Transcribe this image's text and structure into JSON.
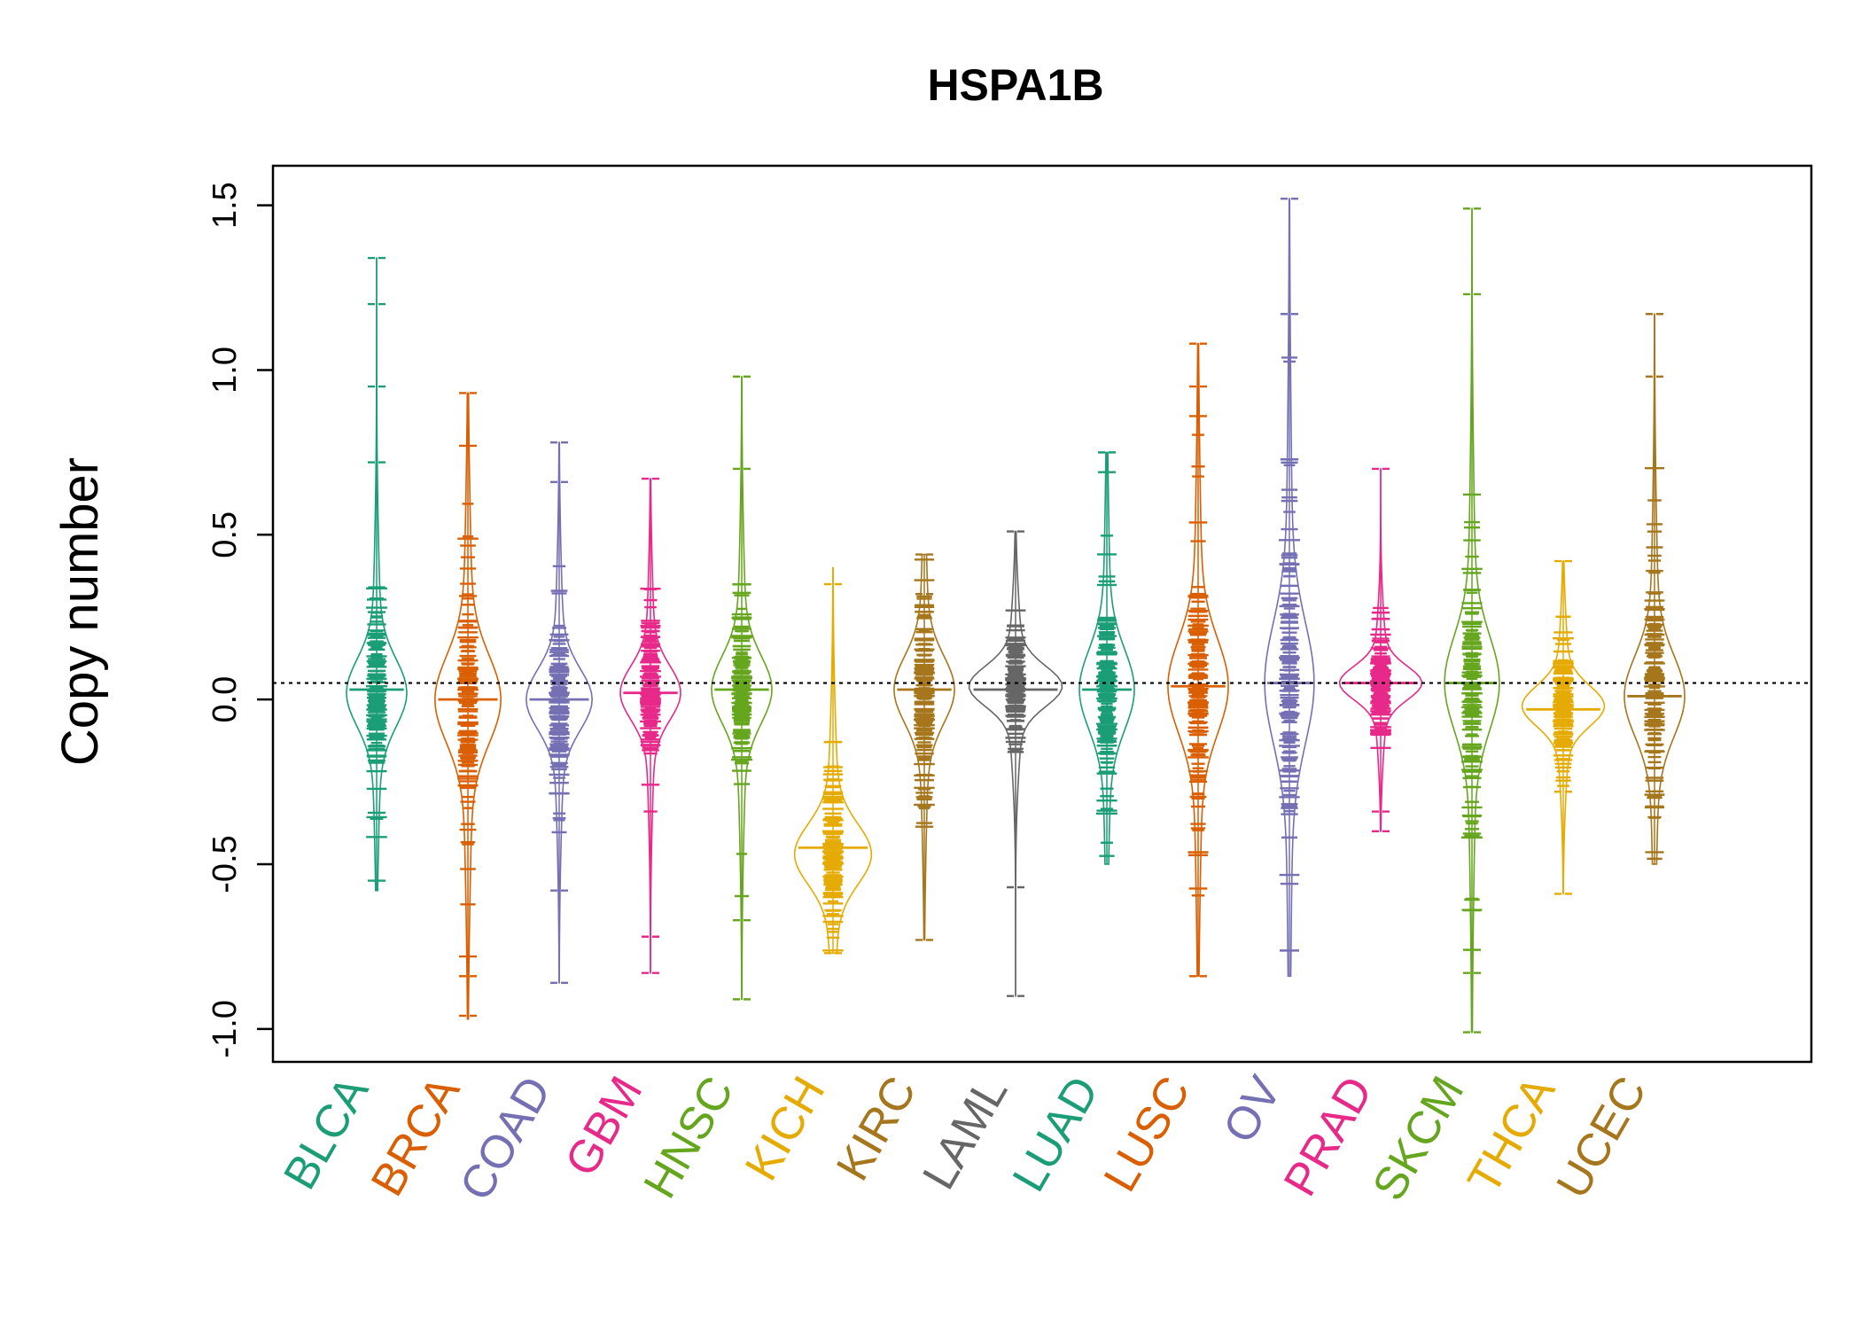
{
  "chart_data": {
    "type": "beanplot",
    "title": "HSPA1B",
    "xlabel": "",
    "ylabel": "Copy number",
    "ylim": [
      -1.1,
      1.62
    ],
    "yticks": [
      -1.0,
      -0.5,
      0.0,
      0.5,
      1.0,
      1.5
    ],
    "ytick_labels": [
      "-1.0",
      "-0.5",
      "0.0",
      "0.5",
      "1.0",
      "1.5"
    ],
    "reference_line": 0.05,
    "grid": false,
    "legend": "none",
    "categories": [
      "BLCA",
      "BRCA",
      "COAD",
      "GBM",
      "HNSC",
      "KICH",
      "KIRC",
      "LAML",
      "LUAD",
      "LUSC",
      "OV",
      "PRAD",
      "SKCM",
      "THCA",
      "UCEC"
    ],
    "colors": [
      "#1B9E77",
      "#D95F02",
      "#7570B3",
      "#E7298A",
      "#66A61E",
      "#E6AB02",
      "#A6761D",
      "#666666",
      "#1B9E77",
      "#D95F02",
      "#7570B3",
      "#E7298A",
      "#66A61E",
      "#E6AB02",
      "#A6761D"
    ],
    "series": [
      {
        "min": -0.58,
        "max": 1.34,
        "median": 0.03,
        "center": 0.02,
        "spread": 0.1,
        "width": 0.55,
        "outliers": [
          1.34,
          1.2,
          0.95,
          0.72,
          -0.55
        ]
      },
      {
        "min": -0.97,
        "max": 0.93,
        "median": 0.0,
        "center": 0.0,
        "spread": 0.13,
        "width": 0.6,
        "outliers": [
          0.93,
          0.77,
          -0.78,
          -0.84,
          -0.96
        ]
      },
      {
        "min": -0.86,
        "max": 0.78,
        "median": 0.0,
        "center": 0.0,
        "spread": 0.09,
        "width": 0.6,
        "outliers": [
          0.78,
          0.66,
          -0.58,
          -0.86
        ]
      },
      {
        "min": -0.83,
        "max": 0.67,
        "median": 0.02,
        "center": 0.02,
        "spread": 0.08,
        "width": 0.55,
        "outliers": [
          0.67,
          -0.72,
          -0.83
        ]
      },
      {
        "min": -0.91,
        "max": 0.98,
        "median": 0.03,
        "center": 0.03,
        "spread": 0.1,
        "width": 0.55,
        "outliers": [
          0.98,
          0.7,
          -0.67,
          -0.91
        ]
      },
      {
        "min": -0.77,
        "max": 0.4,
        "median": -0.45,
        "center": -0.47,
        "spread": 0.09,
        "width": 0.7,
        "outliers": [
          0.35,
          -0.77
        ]
      },
      {
        "min": -0.73,
        "max": 0.44,
        "median": 0.03,
        "center": 0.03,
        "spread": 0.1,
        "width": 0.55,
        "outliers": [
          0.44,
          0.32,
          -0.73
        ]
      },
      {
        "min": -0.9,
        "max": 0.51,
        "median": 0.03,
        "center": 0.04,
        "spread": 0.06,
        "width": 0.85,
        "outliers": [
          0.51,
          -0.57,
          -0.9
        ]
      },
      {
        "min": -0.5,
        "max": 0.75,
        "median": 0.03,
        "center": 0.03,
        "spread": 0.12,
        "width": 0.5,
        "outliers": [
          0.75,
          0.69
        ]
      },
      {
        "min": -0.84,
        "max": 1.08,
        "median": 0.04,
        "center": 0.04,
        "spread": 0.14,
        "width": 0.55,
        "outliers": [
          1.08,
          0.95,
          0.86,
          -0.84
        ]
      },
      {
        "min": -0.84,
        "max": 1.52,
        "median": 0.05,
        "center": 0.05,
        "spread": 0.18,
        "width": 0.45,
        "outliers": [
          1.52,
          1.17
        ]
      },
      {
        "min": -0.4,
        "max": 0.7,
        "median": 0.05,
        "center": 0.05,
        "spread": 0.05,
        "width": 0.75,
        "outliers": [
          0.7,
          -0.34,
          -0.4
        ]
      },
      {
        "min": -1.01,
        "max": 1.49,
        "median": 0.05,
        "center": 0.05,
        "spread": 0.14,
        "width": 0.5,
        "outliers": [
          1.49,
          1.23,
          -0.64,
          -0.76,
          -0.83,
          -1.01
        ]
      },
      {
        "min": -0.59,
        "max": 0.42,
        "median": -0.03,
        "center": -0.02,
        "spread": 0.06,
        "width": 0.75,
        "outliers": [
          0.42,
          -0.28,
          -0.59
        ]
      },
      {
        "min": -0.5,
        "max": 1.17,
        "median": 0.01,
        "center": 0.01,
        "spread": 0.12,
        "width": 0.55,
        "outliers": [
          1.17,
          0.98
        ]
      }
    ]
  }
}
